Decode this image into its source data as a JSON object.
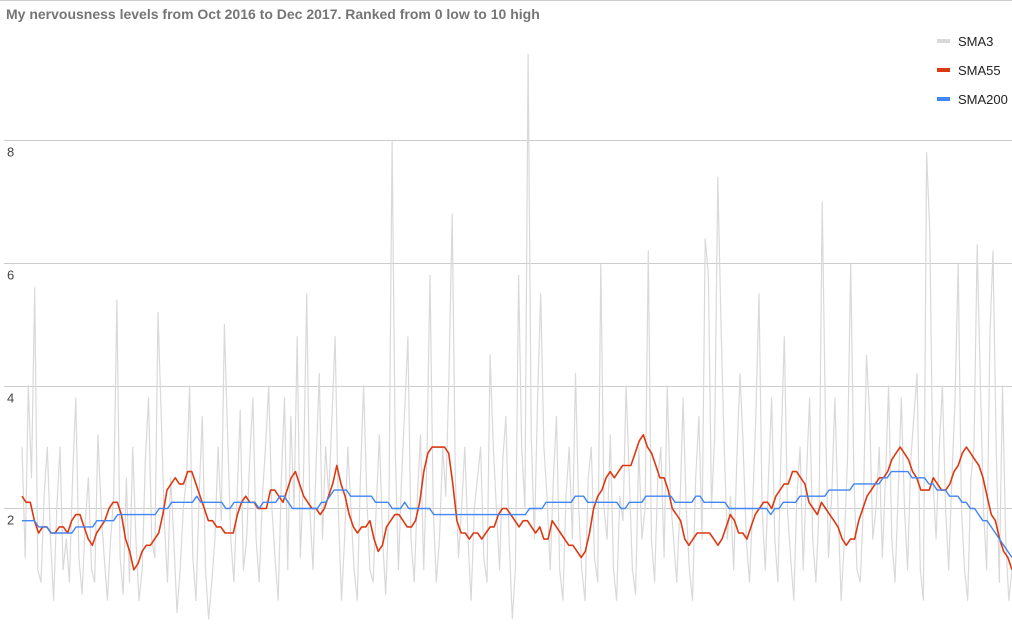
{
  "chart_data": {
    "type": "line",
    "title": "My nervousness levels from Oct 2016 to Dec 2017. Ranked from 0 low to 10 high",
    "xlabel": "",
    "ylabel": "",
    "ylim": [
      0.1,
      9.8
    ],
    "yticks": [
      "2",
      "4",
      "6",
      "8"
    ],
    "grid": true,
    "legend_placement": "top-right",
    "colors": {
      "SMA3": "#d9d9d9",
      "SMA55": "#dc3912",
      "SMA200": "#4285f4",
      "grid": "#cccccc",
      "baseline": "#cccccc"
    },
    "series": [
      {
        "name": "SMA3",
        "values": [
          3.0,
          1.2,
          4.0,
          2.5,
          5.6,
          1.0,
          0.8,
          2.2,
          3.0,
          1.5,
          0.5,
          2.0,
          3.0,
          1.0,
          1.5,
          0.8,
          2.5,
          3.8,
          1.2,
          0.6,
          1.8,
          2.5,
          1.0,
          0.8,
          3.2,
          2.0,
          1.2,
          0.5,
          1.5,
          2.2,
          5.4,
          1.2,
          0.6,
          2.5,
          0.8,
          3.0,
          1.5,
          0.5,
          1.0,
          2.8,
          3.8,
          1.5,
          1.2,
          5.2,
          3.5,
          1.8,
          0.8,
          2.5,
          1.5,
          0.3,
          1.0,
          2.0,
          2.5,
          4.0,
          1.2,
          0.5,
          2.2,
          3.5,
          1.0,
          0.2,
          0.8,
          1.5,
          3.0,
          1.8,
          5.0,
          3.2,
          1.5,
          0.8,
          2.2,
          3.6,
          1.0,
          1.5,
          2.8,
          3.8,
          1.5,
          0.8,
          2.2,
          3.0,
          4.0,
          2.0,
          1.2,
          0.5,
          2.5,
          3.8,
          1.0,
          3.5,
          2.0,
          4.8,
          1.2,
          2.5,
          5.5,
          2.0,
          1.0,
          2.8,
          4.2,
          1.5,
          3.0,
          2.2,
          3.5,
          4.8,
          2.0,
          0.5,
          1.5,
          3.0,
          2.0,
          1.0,
          0.5,
          2.5,
          4.0,
          2.2,
          1.0,
          0.8,
          2.0,
          3.2,
          1.5,
          0.6,
          2.0,
          8.0,
          3.0,
          1.0,
          2.5,
          3.6,
          4.8,
          1.5,
          0.8,
          2.2,
          3.2,
          1.0,
          2.8,
          5.8,
          2.0,
          0.8,
          1.5,
          3.0,
          2.2,
          4.2,
          6.8,
          2.5,
          1.2,
          2.0,
          3.0,
          1.5,
          0.5,
          2.0,
          2.5,
          3.0,
          1.2,
          0.8,
          4.5,
          3.0,
          2.0,
          1.0,
          2.8,
          3.5,
          1.5,
          0.2,
          1.0,
          5.8,
          3.0,
          2.0,
          9.4,
          3.2,
          1.5,
          3.8,
          5.5,
          3.0,
          2.2,
          1.0,
          2.5,
          3.5,
          1.0,
          0.5,
          2.2,
          3.0,
          1.5,
          4.2,
          2.0,
          1.0,
          0.5,
          2.5,
          3.0,
          1.2,
          0.8,
          6.0,
          2.0,
          1.5,
          3.2,
          1.0,
          0.5,
          2.2,
          1.8,
          4.0,
          2.5,
          1.0,
          0.6,
          3.0,
          1.5,
          2.0,
          6.2,
          1.5,
          0.8,
          2.5,
          3.0,
          1.2,
          4.0,
          2.2,
          1.5,
          0.8,
          2.0,
          3.8,
          2.0,
          1.0,
          0.5,
          2.5,
          3.5,
          1.5,
          6.4,
          5.8,
          2.0,
          3.2,
          7.4,
          5.0,
          3.0,
          1.5,
          2.2,
          1.0,
          2.8,
          4.2,
          3.0,
          1.5,
          0.8,
          2.0,
          3.5,
          5.5,
          2.0,
          1.0,
          2.5,
          3.8,
          1.5,
          0.8,
          3.0,
          4.8,
          2.0,
          1.2,
          0.5,
          2.2,
          3.0,
          1.0,
          2.5,
          3.8,
          1.5,
          0.8,
          2.0,
          7.0,
          3.5,
          1.2,
          2.2,
          3.8,
          2.0,
          0.5,
          1.5,
          2.8,
          6.0,
          2.5,
          1.0,
          0.8,
          2.0,
          4.5,
          3.5,
          1.5,
          2.0,
          3.0,
          1.2,
          2.5,
          4.0,
          1.5,
          0.8,
          2.2,
          3.8,
          2.0,
          1.0,
          2.8,
          3.5,
          4.2,
          1.0,
          0.5,
          7.8,
          6.5,
          2.5,
          1.5,
          3.0,
          4.0,
          2.0,
          1.0,
          2.5,
          3.8,
          6.0,
          2.0,
          1.0,
          0.5,
          2.5,
          3.0,
          6.3,
          4.0,
          2.0,
          1.0,
          4.8,
          6.2,
          3.0,
          0.8,
          4.0,
          1.5,
          0.5,
          1.0
        ]
      },
      {
        "name": "SMA55",
        "values": [
          2.2,
          2.1,
          2.1,
          1.8,
          1.6,
          1.7,
          1.7,
          1.6,
          1.6,
          1.7,
          1.7,
          1.6,
          1.8,
          1.9,
          1.9,
          1.7,
          1.5,
          1.4,
          1.6,
          1.7,
          1.8,
          2.0,
          2.1,
          2.1,
          1.9,
          1.5,
          1.3,
          1.0,
          1.1,
          1.3,
          1.4,
          1.4,
          1.5,
          1.6,
          1.9,
          2.3,
          2.4,
          2.5,
          2.4,
          2.4,
          2.6,
          2.6,
          2.4,
          2.2,
          2.0,
          1.8,
          1.8,
          1.7,
          1.7,
          1.6,
          1.6,
          1.6,
          1.9,
          2.1,
          2.2,
          2.1,
          2.1,
          2.0,
          2.0,
          2.0,
          2.3,
          2.3,
          2.2,
          2.1,
          2.3,
          2.5,
          2.6,
          2.4,
          2.2,
          2.1,
          2.0,
          2.0,
          1.9,
          2.0,
          2.2,
          2.4,
          2.7,
          2.4,
          2.2,
          1.9,
          1.7,
          1.6,
          1.7,
          1.7,
          1.8,
          1.5,
          1.3,
          1.4,
          1.7,
          1.8,
          1.9,
          1.9,
          1.8,
          1.7,
          1.7,
          1.8,
          2.1,
          2.6,
          2.9,
          3.0,
          3.0,
          3.0,
          3.0,
          2.9,
          2.4,
          1.8,
          1.6,
          1.6,
          1.5,
          1.6,
          1.6,
          1.5,
          1.6,
          1.7,
          1.7,
          1.9,
          2.0,
          2.0,
          1.9,
          1.8,
          1.7,
          1.8,
          1.8,
          1.7,
          1.6,
          1.7,
          1.5,
          1.5,
          1.8,
          1.7,
          1.6,
          1.5,
          1.4,
          1.4,
          1.3,
          1.2,
          1.3,
          1.6,
          2.0,
          2.2,
          2.3,
          2.5,
          2.6,
          2.5,
          2.6,
          2.7,
          2.7,
          2.7,
          2.9,
          3.1,
          3.2,
          3.0,
          2.9,
          2.7,
          2.5,
          2.5,
          2.3,
          2.0,
          1.9,
          1.8,
          1.5,
          1.4,
          1.5,
          1.6,
          1.6,
          1.6,
          1.6,
          1.5,
          1.4,
          1.5,
          1.7,
          1.9,
          1.8,
          1.6,
          1.6,
          1.5,
          1.7,
          1.9,
          2.0,
          2.1,
          2.1,
          2.0,
          2.2,
          2.3,
          2.4,
          2.4,
          2.6,
          2.6,
          2.5,
          2.4,
          2.1,
          2.0,
          1.9,
          2.1,
          2.0,
          1.9,
          1.8,
          1.7,
          1.5,
          1.4,
          1.5,
          1.5,
          1.8,
          2.0,
          2.2,
          2.3,
          2.4,
          2.5,
          2.5,
          2.6,
          2.8,
          2.9,
          3.0,
          2.9,
          2.8,
          2.6,
          2.5,
          2.3,
          2.3,
          2.3,
          2.5,
          2.4,
          2.3,
          2.3,
          2.4,
          2.6,
          2.7,
          2.9,
          3.0,
          2.9,
          2.8,
          2.7,
          2.5,
          2.2,
          1.9,
          1.8,
          1.5,
          1.3,
          1.2,
          1.0
        ]
      },
      {
        "name": "SMA200",
        "values": [
          1.8,
          1.8,
          1.8,
          1.8,
          1.7,
          1.7,
          1.7,
          1.6,
          1.6,
          1.6,
          1.6,
          1.6,
          1.6,
          1.7,
          1.7,
          1.7,
          1.7,
          1.7,
          1.8,
          1.8,
          1.8,
          1.8,
          1.8,
          1.9,
          1.9,
          1.9,
          1.9,
          1.9,
          1.9,
          1.9,
          1.9,
          1.9,
          1.9,
          2.0,
          2.0,
          2.0,
          2.1,
          2.1,
          2.1,
          2.1,
          2.1,
          2.1,
          2.2,
          2.1,
          2.1,
          2.1,
          2.1,
          2.1,
          2.1,
          2.0,
          2.0,
          2.1,
          2.1,
          2.1,
          2.1,
          2.1,
          2.1,
          2.0,
          2.1,
          2.1,
          2.1,
          2.1,
          2.2,
          2.2,
          2.1,
          2.0,
          2.0,
          2.0,
          2.0,
          2.0,
          2.0,
          2.0,
          2.1,
          2.1,
          2.2,
          2.3,
          2.3,
          2.3,
          2.3,
          2.2,
          2.2,
          2.2,
          2.2,
          2.2,
          2.2,
          2.1,
          2.1,
          2.1,
          2.1,
          2.0,
          2.0,
          2.0,
          2.1,
          2.0,
          2.0,
          2.0,
          2.0,
          2.0,
          2.0,
          1.9,
          1.9,
          1.9,
          1.9,
          1.9,
          1.9,
          1.9,
          1.9,
          1.9,
          1.9,
          1.9,
          1.9,
          1.9,
          1.9,
          1.9,
          1.9,
          1.9,
          1.9,
          1.9,
          1.9,
          1.9,
          1.9,
          1.9,
          2.0,
          2.0,
          2.0,
          2.0,
          2.1,
          2.1,
          2.1,
          2.1,
          2.1,
          2.1,
          2.1,
          2.2,
          2.2,
          2.2,
          2.1,
          2.1,
          2.1,
          2.1,
          2.1,
          2.1,
          2.1,
          2.1,
          2.0,
          2.0,
          2.1,
          2.1,
          2.1,
          2.1,
          2.2,
          2.2,
          2.2,
          2.2,
          2.2,
          2.2,
          2.2,
          2.1,
          2.1,
          2.1,
          2.1,
          2.1,
          2.2,
          2.2,
          2.1,
          2.1,
          2.1,
          2.1,
          2.1,
          2.1,
          2.0,
          2.0,
          2.0,
          2.0,
          2.0,
          2.0,
          2.0,
          2.0,
          2.0,
          2.0,
          1.9,
          2.0,
          2.0,
          2.1,
          2.1,
          2.1,
          2.1,
          2.2,
          2.2,
          2.2,
          2.2,
          2.2,
          2.2,
          2.2,
          2.3,
          2.3,
          2.3,
          2.3,
          2.3,
          2.3,
          2.4,
          2.4,
          2.4,
          2.4,
          2.4,
          2.4,
          2.4,
          2.5,
          2.5,
          2.6,
          2.6,
          2.6,
          2.6,
          2.6,
          2.5,
          2.5,
          2.5,
          2.5,
          2.4,
          2.4,
          2.3,
          2.3,
          2.3,
          2.2,
          2.2,
          2.2,
          2.1,
          2.1,
          2.0,
          2.0,
          1.9,
          1.8,
          1.8,
          1.7,
          1.6,
          1.5,
          1.4,
          1.3,
          1.2
        ]
      }
    ]
  }
}
